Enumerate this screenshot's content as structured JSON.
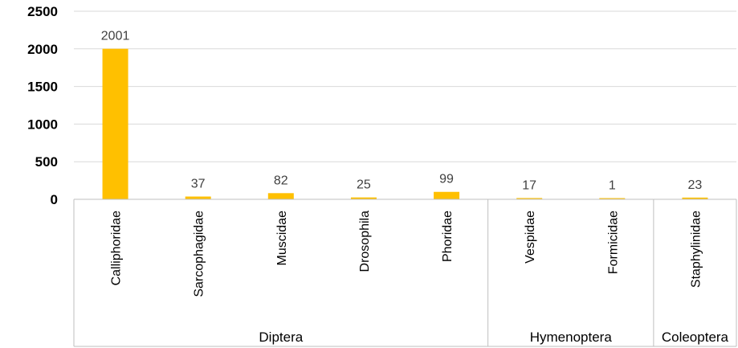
{
  "chart_data": {
    "type": "bar",
    "title": "",
    "xlabel": "",
    "ylabel": "",
    "ylim": [
      0,
      2500
    ],
    "yticks": [
      0,
      500,
      1000,
      1500,
      2000,
      2500
    ],
    "grid": true,
    "legend": "none",
    "bar_color": "#FFC000",
    "gridline_color": "#D9D9D9",
    "axis_line_color": "#BFBFBF",
    "categories": [
      "Calliphoridae",
      "Sarcophagidae",
      "Muscidae",
      "Drosophila",
      "Phoridae",
      "Vespidae",
      "Formicidae",
      "Staphylinidae"
    ],
    "values": [
      2001,
      37,
      82,
      25,
      99,
      17,
      1,
      23
    ],
    "data_labels": [
      "2001",
      "37",
      "82",
      "25",
      "99",
      "17",
      "1",
      "23"
    ],
    "groups": [
      {
        "label": "Diptera",
        "count": 5
      },
      {
        "label": "Hymenoptera",
        "count": 2
      },
      {
        "label": "Coleoptera",
        "count": 1
      }
    ]
  }
}
